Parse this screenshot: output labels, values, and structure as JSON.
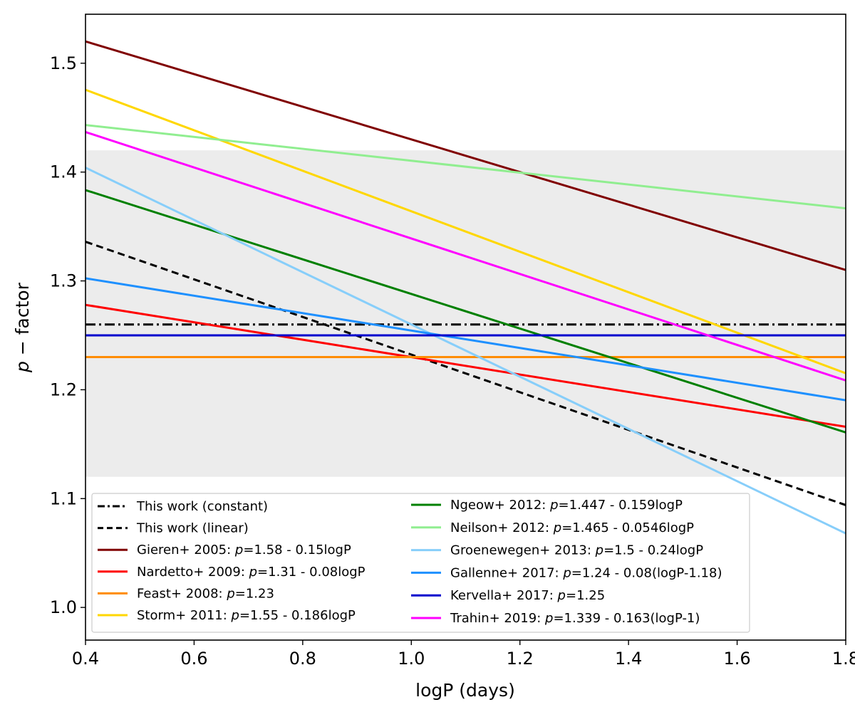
{
  "chart_data": {
    "type": "line",
    "title": "",
    "xlabel": "logP (days)",
    "ylabel_prefix": "p",
    "ylabel_suffix": " − factor",
    "xlim": [
      0.4,
      1.8
    ],
    "ylim": [
      0.97,
      1.545
    ],
    "x_ticks": [
      0.4,
      0.6,
      0.8,
      1.0,
      1.2,
      1.4,
      1.6,
      1.8
    ],
    "x_tick_labels": [
      "0.4",
      "0.6",
      "0.8",
      "1.0",
      "1.2",
      "1.4",
      "1.6",
      "1.8"
    ],
    "y_ticks": [
      1.0,
      1.1,
      1.2,
      1.3,
      1.4,
      1.5
    ],
    "y_tick_labels": [
      "1.0",
      "1.1",
      "1.2",
      "1.3",
      "1.4",
      "1.5"
    ],
    "grid": false,
    "shaded_band": {
      "y_from": 1.12,
      "y_to": 1.42,
      "color": "#ececec"
    },
    "legend": {
      "placement": "lower-left",
      "columns": 2
    },
    "series": [
      {
        "label_plain": "This work (constant)",
        "label_pre": "",
        "label_italic": "",
        "label_post": "",
        "color": "#000000",
        "style": "dashdot",
        "x": [
          0.4,
          1.8
        ],
        "y": [
          1.26,
          1.26
        ]
      },
      {
        "label_plain": "This work (linear)",
        "label_pre": "",
        "label_italic": "",
        "label_post": "",
        "color": "#000000",
        "style": "dashed",
        "x": [
          0.4,
          1.8
        ],
        "y": [
          1.336,
          1.094
        ]
      },
      {
        "label_plain": "",
        "label_pre": "Gieren+ 2005: ",
        "label_italic": "p",
        "label_post": "=1.58 - 0.15logP",
        "color": "#800000",
        "style": "solid",
        "x": [
          0.4,
          1.8
        ],
        "y": [
          1.52,
          1.31
        ]
      },
      {
        "label_plain": "",
        "label_pre": "Nardetto+ 2009: ",
        "label_italic": "p",
        "label_post": "=1.31 - 0.08logP",
        "color": "#ff0000",
        "style": "solid",
        "x": [
          0.4,
          1.8
        ],
        "y": [
          1.278,
          1.166
        ]
      },
      {
        "label_plain": "",
        "label_pre": "Feast+ 2008: ",
        "label_italic": "p",
        "label_post": "=1.23",
        "color": "#ff8c00",
        "style": "solid",
        "x": [
          0.4,
          1.8
        ],
        "y": [
          1.23,
          1.23
        ]
      },
      {
        "label_plain": "",
        "label_pre": "Storm+ 2011: ",
        "label_italic": "p",
        "label_post": "=1.55 - 0.186logP",
        "color": "#ffd700",
        "style": "solid",
        "x": [
          0.4,
          1.8
        ],
        "y": [
          1.4756,
          1.2152
        ]
      },
      {
        "label_plain": "",
        "label_pre": "Ngeow+ 2012: ",
        "label_italic": "p",
        "label_post": "=1.447 - 0.159logP",
        "color": "#008000",
        "style": "solid",
        "x": [
          0.4,
          1.8
        ],
        "y": [
          1.3834,
          1.1608
        ]
      },
      {
        "label_plain": "",
        "label_pre": "Neilson+ 2012: ",
        "label_italic": "p",
        "label_post": "=1.465 - 0.0546logP",
        "color": "#90ee90",
        "style": "solid",
        "x": [
          0.4,
          1.8
        ],
        "y": [
          1.4432,
          1.3667
        ]
      },
      {
        "label_plain": "",
        "label_pre": "Groenewegen+ 2013: ",
        "label_italic": "p",
        "label_post": "=1.5 - 0.24logP",
        "color": "#87cefa",
        "style": "solid",
        "x": [
          0.4,
          1.8
        ],
        "y": [
          1.404,
          1.068
        ]
      },
      {
        "label_plain": "",
        "label_pre": "Gallenne+ 2017: ",
        "label_italic": "p",
        "label_post": "=1.24 - 0.08(logP-1.18)",
        "color": "#1e90ff",
        "style": "solid",
        "x": [
          0.4,
          1.8
        ],
        "y": [
          1.3024,
          1.1904
        ]
      },
      {
        "label_plain": "",
        "label_pre": "Kervella+ 2017: ",
        "label_italic": "p",
        "label_post": "=1.25",
        "color": "#0000cd",
        "style": "solid",
        "x": [
          0.4,
          1.8
        ],
        "y": [
          1.25,
          1.25
        ]
      },
      {
        "label_plain": "",
        "label_pre": "Trahin+ 2019: ",
        "label_italic": "p",
        "label_post": "=1.339 - 0.163(logP-1)",
        "color": "#ff00ff",
        "style": "solid",
        "x": [
          0.4,
          1.8
        ],
        "y": [
          1.4368,
          1.2086
        ]
      }
    ]
  }
}
